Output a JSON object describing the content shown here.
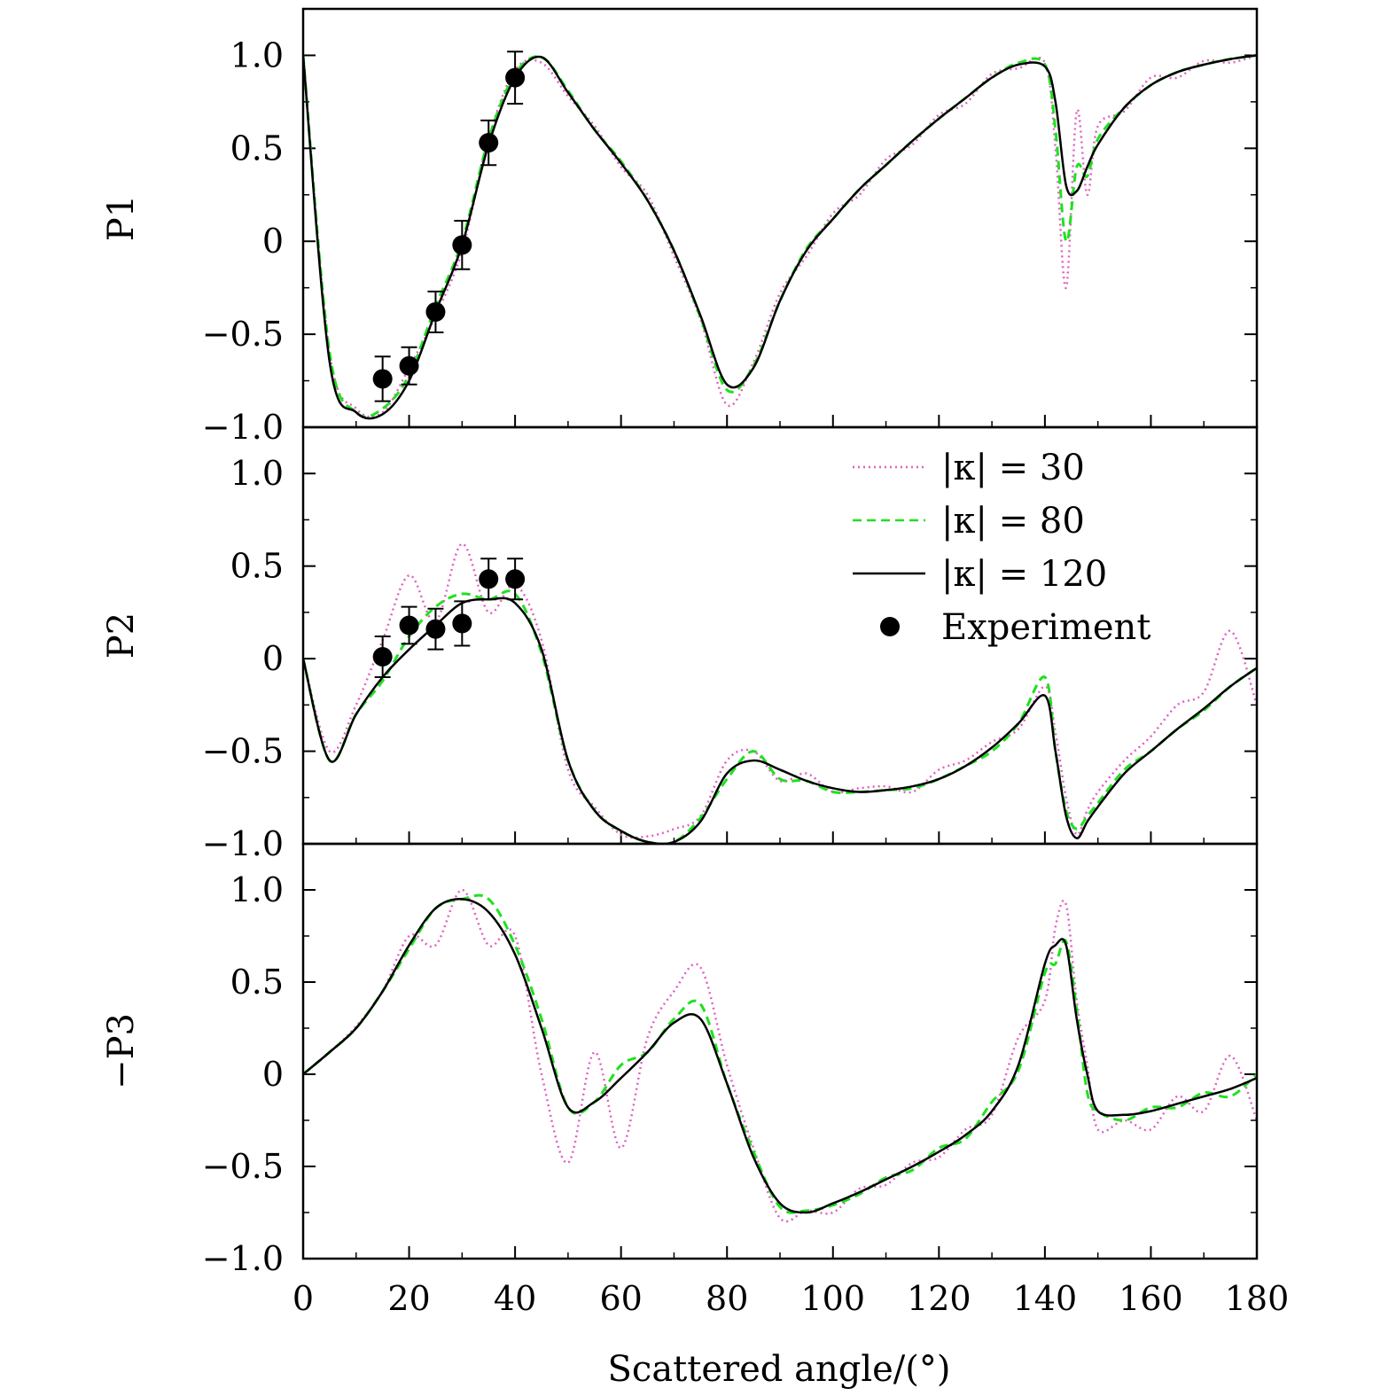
{
  "chart_data": {
    "type": "line",
    "layout": "3 stacked panels sharing x axis",
    "x": [
      0,
      5,
      10,
      15,
      20,
      25,
      30,
      35,
      40,
      45,
      50,
      55,
      60,
      65,
      70,
      75,
      80,
      85,
      90,
      95,
      100,
      105,
      110,
      115,
      120,
      125,
      130,
      135,
      140,
      142,
      144,
      146,
      148,
      150,
      155,
      160,
      165,
      170,
      175,
      180
    ],
    "xlabel": "Scattered angle/(°)",
    "xlim": [
      0,
      180
    ],
    "xticks": [
      "0",
      "20",
      "40",
      "60",
      "80",
      "100",
      "120",
      "140",
      "160",
      "180"
    ],
    "legend": {
      "position": "inside middle panel, top-right",
      "entries": [
        {
          "label": "|κ| = 30",
          "style": "dotted",
          "color": "#e060c0"
        },
        {
          "label": "|κ| = 80",
          "style": "dashed",
          "color": "#20e020"
        },
        {
          "label": "|κ| = 120",
          "style": "solid",
          "color": "#000000"
        },
        {
          "label": "Experiment",
          "style": "marker",
          "color": "#000000"
        }
      ]
    },
    "panels": [
      {
        "ylabel": "P1",
        "ylim": [
          -1.0,
          1.25
        ],
        "yticks": [
          "−1.0",
          "−0.5",
          "0",
          "0.5",
          "1.0"
        ],
        "series": [
          {
            "name": "|κ| = 120",
            "values": [
              1.0,
              -0.65,
              -0.92,
              -0.93,
              -0.75,
              -0.38,
              -0.02,
              0.52,
              0.88,
              0.99,
              0.8,
              0.6,
              0.42,
              0.22,
              -0.05,
              -0.4,
              -0.77,
              -0.68,
              -0.32,
              -0.05,
              0.12,
              0.28,
              0.41,
              0.54,
              0.66,
              0.77,
              0.88,
              0.95,
              0.94,
              0.75,
              0.3,
              0.27,
              0.4,
              0.52,
              0.72,
              0.84,
              0.91,
              0.95,
              0.98,
              1.0
            ]
          },
          {
            "name": "|κ| = 80",
            "values": [
              1.0,
              -0.6,
              -0.92,
              -0.9,
              -0.72,
              -0.35,
              0.0,
              0.55,
              0.9,
              0.99,
              0.81,
              0.6,
              0.43,
              0.22,
              -0.05,
              -0.41,
              -0.8,
              -0.67,
              -0.32,
              -0.04,
              0.12,
              0.28,
              0.41,
              0.54,
              0.66,
              0.77,
              0.88,
              0.96,
              0.95,
              0.6,
              0.0,
              0.4,
              0.35,
              0.55,
              0.72,
              0.84,
              0.91,
              0.95,
              0.98,
              1.0
            ]
          },
          {
            "name": "|κ| = 30",
            "values": [
              1.0,
              -0.6,
              -0.9,
              -0.92,
              -0.68,
              -0.4,
              -0.05,
              0.55,
              0.92,
              0.96,
              0.78,
              0.62,
              0.4,
              0.25,
              -0.08,
              -0.42,
              -0.88,
              -0.65,
              -0.28,
              -0.08,
              0.15,
              0.25,
              0.44,
              0.52,
              0.68,
              0.74,
              0.9,
              0.93,
              0.96,
              0.5,
              -0.25,
              0.7,
              0.25,
              0.62,
              0.7,
              0.88,
              0.88,
              0.97,
              0.96,
              1.0
            ]
          }
        ],
        "experiment": {
          "x": [
            15,
            20,
            25,
            30,
            35,
            40
          ],
          "y": [
            -0.74,
            -0.67,
            -0.38,
            -0.02,
            0.53,
            0.88
          ],
          "err": [
            0.12,
            0.1,
            0.11,
            0.13,
            0.12,
            0.14
          ]
        }
      },
      {
        "ylabel": "P2",
        "ylim": [
          -1.0,
          1.25
        ],
        "yticks": [
          "−1.0",
          "−0.5",
          "0",
          "0.5",
          "1.0"
        ],
        "series": [
          {
            "name": "|κ| = 120",
            "values": [
              0.0,
              -0.55,
              -0.3,
              -0.1,
              0.05,
              0.18,
              0.3,
              0.32,
              0.3,
              0.05,
              -0.55,
              -0.82,
              -0.93,
              -0.99,
              -0.99,
              -0.88,
              -0.62,
              -0.55,
              -0.6,
              -0.66,
              -0.7,
              -0.72,
              -0.71,
              -0.69,
              -0.65,
              -0.58,
              -0.48,
              -0.35,
              -0.2,
              -0.5,
              -0.85,
              -0.97,
              -0.88,
              -0.8,
              -0.62,
              -0.5,
              -0.38,
              -0.27,
              -0.15,
              -0.05
            ]
          },
          {
            "name": "|κ| = 80",
            "values": [
              0.0,
              -0.55,
              -0.3,
              -0.12,
              0.12,
              0.28,
              0.35,
              0.32,
              0.35,
              0.03,
              -0.55,
              -0.82,
              -0.93,
              -0.99,
              -0.99,
              -0.86,
              -0.65,
              -0.5,
              -0.65,
              -0.66,
              -0.72,
              -0.72,
              -0.71,
              -0.7,
              -0.65,
              -0.58,
              -0.5,
              -0.35,
              -0.1,
              -0.5,
              -0.82,
              -0.92,
              -0.85,
              -0.78,
              -0.6,
              -0.5,
              -0.38,
              -0.28,
              -0.15,
              -0.05
            ]
          },
          {
            "name": "|κ| = 30",
            "values": [
              0.0,
              -0.5,
              -0.25,
              0.1,
              0.45,
              0.2,
              0.62,
              0.25,
              0.4,
              0.1,
              -0.6,
              -0.8,
              -0.95,
              -0.96,
              -0.92,
              -0.85,
              -0.55,
              -0.5,
              -0.66,
              -0.62,
              -0.72,
              -0.7,
              -0.69,
              -0.72,
              -0.6,
              -0.55,
              -0.45,
              -0.38,
              -0.15,
              -0.4,
              -0.75,
              -0.95,
              -0.82,
              -0.72,
              -0.55,
              -0.42,
              -0.25,
              -0.18,
              0.15,
              -0.25
            ]
          }
        ],
        "experiment": {
          "x": [
            15,
            20,
            25,
            30,
            35,
            40
          ],
          "y": [
            0.01,
            0.18,
            0.16,
            0.19,
            0.43,
            0.43
          ],
          "err": [
            0.11,
            0.1,
            0.11,
            0.12,
            0.11,
            0.11
          ]
        }
      },
      {
        "ylabel": "−P3",
        "ylim": [
          -1.0,
          1.25
        ],
        "yticks": [
          "−1.0",
          "−0.5",
          "0",
          "0.5",
          "1.0"
        ],
        "series": [
          {
            "name": "|κ| = 120",
            "values": [
              0.0,
              0.12,
              0.25,
              0.45,
              0.7,
              0.9,
              0.95,
              0.88,
              0.65,
              0.25,
              -0.18,
              -0.15,
              -0.02,
              0.12,
              0.28,
              0.3,
              -0.05,
              -0.45,
              -0.7,
              -0.75,
              -0.7,
              -0.64,
              -0.57,
              -0.5,
              -0.42,
              -0.33,
              -0.2,
              0.05,
              0.6,
              0.7,
              0.7,
              0.3,
              0.0,
              -0.2,
              -0.22,
              -0.2,
              -0.16,
              -0.12,
              -0.08,
              -0.02
            ]
          },
          {
            "name": "|κ| = 80",
            "values": [
              0.0,
              0.12,
              0.25,
              0.45,
              0.68,
              0.9,
              0.95,
              0.95,
              0.7,
              0.3,
              -0.18,
              -0.15,
              0.05,
              0.12,
              0.3,
              0.38,
              -0.05,
              -0.42,
              -0.72,
              -0.74,
              -0.71,
              -0.65,
              -0.56,
              -0.52,
              -0.4,
              -0.35,
              -0.15,
              0.02,
              0.55,
              0.6,
              0.72,
              0.35,
              -0.1,
              -0.2,
              -0.25,
              -0.18,
              -0.18,
              -0.1,
              -0.12,
              0.0
            ]
          },
          {
            "name": "|κ| = 30",
            "values": [
              0.0,
              0.12,
              0.26,
              0.45,
              0.75,
              0.7,
              1.0,
              0.7,
              0.75,
              0.0,
              -0.48,
              0.12,
              -0.4,
              0.2,
              0.45,
              0.58,
              0.05,
              -0.4,
              -0.78,
              -0.74,
              -0.75,
              -0.62,
              -0.6,
              -0.48,
              -0.45,
              -0.3,
              -0.22,
              0.2,
              0.4,
              0.8,
              0.92,
              0.4,
              0.05,
              -0.3,
              -0.25,
              -0.3,
              -0.12,
              -0.2,
              0.1,
              -0.25
            ]
          }
        ]
      }
    ]
  }
}
